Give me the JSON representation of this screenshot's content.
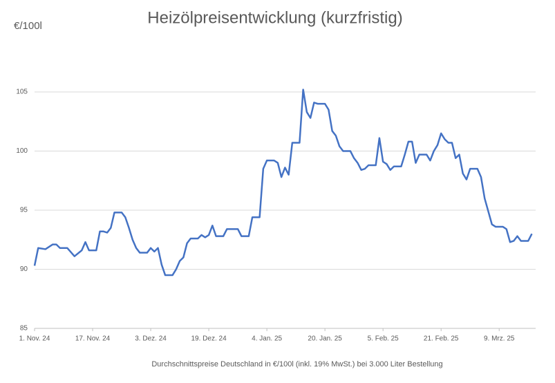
{
  "chart_data": {
    "type": "line",
    "title": "Heizölpreisentwicklung (kurzfristig)",
    "y_label": "€/100l",
    "footnote": "Durchschnittspreise Deutschland in €/100l (inkl. 19% MwSt.) bei 3.000 Liter Bestellung",
    "x": [
      "2024-11-01",
      "2024-11-02",
      "2024-11-04",
      "2024-11-06",
      "2024-11-07",
      "2024-11-08",
      "2024-11-10",
      "2024-11-12",
      "2024-11-14",
      "2024-11-15",
      "2024-11-16",
      "2024-11-18",
      "2024-11-19",
      "2024-11-20",
      "2024-11-21",
      "2024-11-22",
      "2024-11-23",
      "2024-11-25",
      "2024-11-26",
      "2024-11-27",
      "2024-11-28",
      "2024-11-29",
      "2024-11-30",
      "2024-12-02",
      "2024-12-03",
      "2024-12-04",
      "2024-12-05",
      "2024-12-06",
      "2024-12-07",
      "2024-12-09",
      "2024-12-10",
      "2024-12-11",
      "2024-12-12",
      "2024-12-13",
      "2024-12-14",
      "2024-12-16",
      "2024-12-17",
      "2024-12-18",
      "2024-12-19",
      "2024-12-20",
      "2024-12-21",
      "2024-12-23",
      "2024-12-24",
      "2024-12-27",
      "2024-12-28",
      "2024-12-30",
      "2024-12-31",
      "2025-01-02",
      "2025-01-03",
      "2025-01-04",
      "2025-01-06",
      "2025-01-07",
      "2025-01-08",
      "2025-01-09",
      "2025-01-10",
      "2025-01-11",
      "2025-01-13",
      "2025-01-14",
      "2025-01-15",
      "2025-01-16",
      "2025-01-17",
      "2025-01-18",
      "2025-01-20",
      "2025-01-21",
      "2025-01-22",
      "2025-01-23",
      "2025-01-24",
      "2025-01-25",
      "2025-01-27",
      "2025-01-28",
      "2025-01-29",
      "2025-01-30",
      "2025-01-31",
      "2025-02-01",
      "2025-02-03",
      "2025-02-04",
      "2025-02-05",
      "2025-02-06",
      "2025-02-07",
      "2025-02-08",
      "2025-02-10",
      "2025-02-11",
      "2025-02-12",
      "2025-02-13",
      "2025-02-14",
      "2025-02-15",
      "2025-02-17",
      "2025-02-18",
      "2025-02-19",
      "2025-02-20",
      "2025-02-21",
      "2025-02-22",
      "2025-02-23",
      "2025-02-24",
      "2025-02-25",
      "2025-02-26",
      "2025-02-27",
      "2025-02-28",
      "2025-03-01",
      "2025-03-03",
      "2025-03-04",
      "2025-03-05",
      "2025-03-06",
      "2025-03-07",
      "2025-03-08",
      "2025-03-10",
      "2025-03-11",
      "2025-03-12",
      "2025-03-13",
      "2025-03-14",
      "2025-03-15",
      "2025-03-17",
      "2025-03-18"
    ],
    "series": [
      {
        "name": "Heizölpreis",
        "color": "#4472c4",
        "values": [
          90.3,
          91.8,
          91.7,
          92.1,
          92.1,
          91.8,
          91.8,
          91.1,
          91.6,
          92.3,
          91.6,
          91.6,
          93.2,
          93.2,
          93.1,
          93.5,
          94.8,
          94.8,
          94.4,
          93.5,
          92.5,
          91.8,
          91.4,
          91.4,
          91.8,
          91.5,
          91.8,
          90.4,
          89.5,
          89.5,
          90.0,
          90.7,
          91.0,
          92.2,
          92.6,
          92.6,
          92.9,
          92.7,
          92.9,
          93.7,
          92.8,
          92.8,
          93.4,
          93.4,
          92.8,
          92.8,
          94.4,
          94.4,
          98.5,
          99.2,
          99.2,
          99.0,
          97.8,
          98.6,
          98.0,
          100.7,
          100.7,
          105.2,
          103.3,
          102.8,
          104.1,
          104.0,
          104.0,
          103.5,
          101.7,
          101.3,
          100.4,
          100.0,
          100.0,
          99.4,
          99.0,
          98.4,
          98.5,
          98.8,
          98.8,
          101.1,
          99.1,
          98.9,
          98.4,
          98.7,
          98.7,
          99.7,
          100.8,
          100.8,
          99.0,
          99.7,
          99.7,
          99.2,
          100.0,
          100.5,
          101.5,
          101.0,
          100.7,
          100.7,
          99.4,
          99.7,
          98.1,
          97.6,
          98.5,
          98.5,
          97.8,
          96.0,
          94.9,
          93.8,
          93.6,
          93.6,
          93.4,
          92.3,
          92.4,
          92.8,
          92.4,
          92.4,
          93.0
        ]
      }
    ],
    "xlim": [
      "2024-11-01",
      "2025-03-20"
    ],
    "xticks": [
      {
        "value": "2024-11-01",
        "label": "1. Nov. 24"
      },
      {
        "value": "2024-11-17",
        "label": "17. Nov. 24"
      },
      {
        "value": "2024-12-03",
        "label": "3. Dez. 24"
      },
      {
        "value": "2024-12-19",
        "label": "19. Dez. 24"
      },
      {
        "value": "2025-01-04",
        "label": "4. Jan. 25"
      },
      {
        "value": "2025-01-20",
        "label": "20. Jan. 25"
      },
      {
        "value": "2025-02-05",
        "label": "5. Feb. 25"
      },
      {
        "value": "2025-02-21",
        "label": "21. Feb. 25"
      },
      {
        "value": "2025-03-09",
        "label": "9. Mrz. 25"
      }
    ],
    "ylim": [
      85,
      108
    ],
    "yticks": [
      85,
      90,
      95,
      100,
      105
    ],
    "grid": true
  }
}
